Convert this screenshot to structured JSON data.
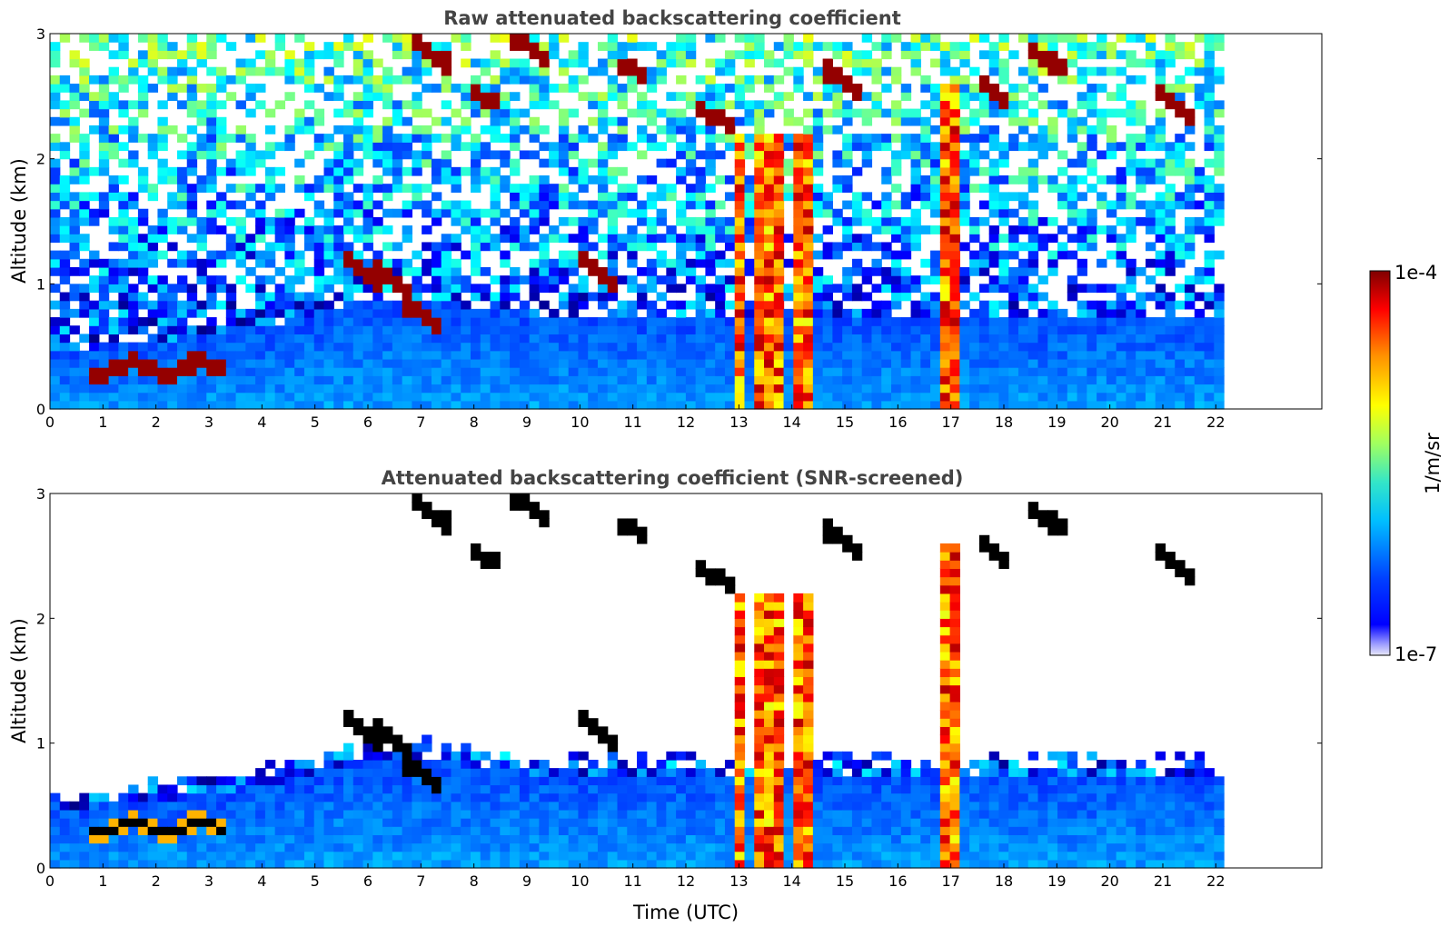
{
  "chart_data": [
    {
      "type": "heatmap",
      "title": "Raw attenuated backscattering coefficient",
      "xlabel": "",
      "ylabel": "Altitude (km)",
      "xlim": [
        0,
        24
      ],
      "ylim": [
        0,
        3
      ],
      "x_ticks": [
        "0",
        "1",
        "2",
        "3",
        "4",
        "5",
        "6",
        "7",
        "8",
        "9",
        "10",
        "11",
        "12",
        "13",
        "14",
        "15",
        "16",
        "17",
        "18",
        "19",
        "20",
        "21",
        "22"
      ],
      "y_ticks": [
        "0",
        "1",
        "2",
        "3"
      ],
      "data_x_range": [
        0,
        22.15
      ],
      "screened": false
    },
    {
      "type": "heatmap",
      "title": "Attenuated backscattering coefficient (SNR-screened)",
      "xlabel": "Time (UTC)",
      "ylabel": "Altitude (km)",
      "xlim": [
        0,
        24
      ],
      "ylim": [
        0,
        3
      ],
      "x_ticks": [
        "0",
        "1",
        "2",
        "3",
        "4",
        "5",
        "6",
        "7",
        "8",
        "9",
        "10",
        "11",
        "12",
        "13",
        "14",
        "15",
        "16",
        "17",
        "18",
        "19",
        "20",
        "21",
        "22"
      ],
      "y_ticks": [
        "0",
        "1",
        "2",
        "3"
      ],
      "data_x_range": [
        0,
        22.15
      ],
      "screened": true
    }
  ],
  "colorbar": {
    "label": "1/m/sr",
    "min_label": "1e-7",
    "max_label": "1e-4",
    "scale": "log",
    "colormap": "jet"
  },
  "colors": {
    "title": "#444444",
    "low": "#0000ff",
    "high": "#800000"
  }
}
